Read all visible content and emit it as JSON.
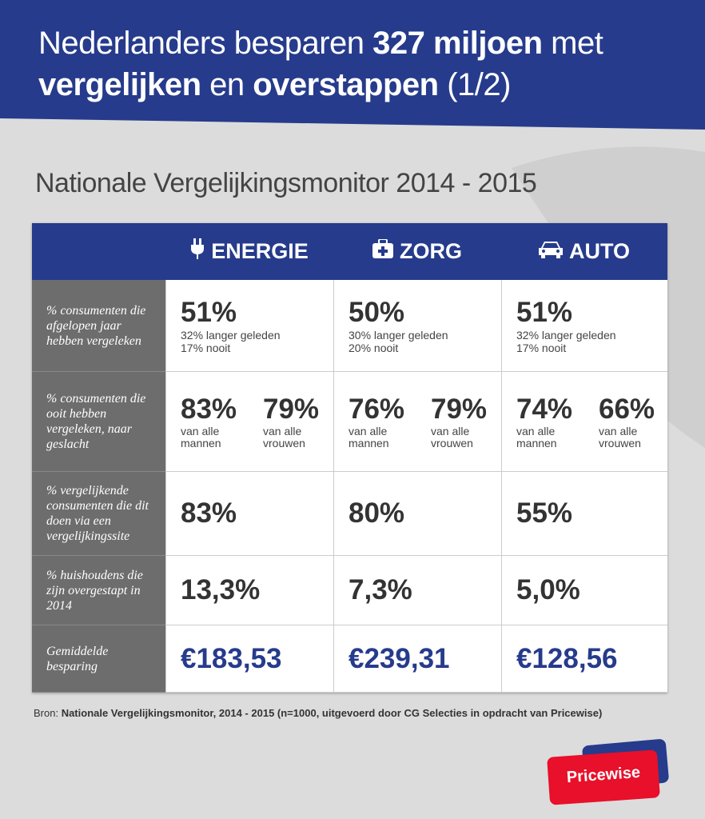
{
  "header": {
    "title_lines": [
      [
        {
          "text": "Nederlanders besparen ",
          "bold": false
        },
        {
          "text": "327 miljoen",
          "bold": true
        },
        {
          "text": " met",
          "bold": false
        }
      ],
      [
        {
          "text": "vergelijken",
          "bold": true
        },
        {
          "text": " en ",
          "bold": false
        },
        {
          "text": "overstappen",
          "bold": true
        },
        {
          "text": " (1/2)",
          "bold": false
        }
      ]
    ]
  },
  "subtitle": "Nationale Vergelijkingsmonitor 2014 - 2015",
  "table": {
    "columns": [
      "ENERGIE",
      "ZORG",
      "AUTO"
    ],
    "rows": [
      {
        "label": "% consumenten die afgelopen jaar hebben vergeleken",
        "cells": [
          {
            "main": "51%",
            "notes": [
              "32% langer geleden",
              "17% nooit"
            ]
          },
          {
            "main": "50%",
            "notes": [
              "30% langer geleden",
              "20% nooit"
            ]
          },
          {
            "main": "51%",
            "notes": [
              "32% langer geleden",
              "17% nooit"
            ]
          }
        ]
      },
      {
        "label": "% consumenten die ooit hebben vergeleken, naar geslacht",
        "cells": [
          {
            "pairs": [
              {
                "value": "83%",
                "label": "van alle mannen"
              },
              {
                "value": "79%",
                "label": "van alle vrouwen"
              }
            ]
          },
          {
            "pairs": [
              {
                "value": "76%",
                "label": "van alle mannen"
              },
              {
                "value": "79%",
                "label": "van alle vrouwen"
              }
            ]
          },
          {
            "pairs": [
              {
                "value": "74%",
                "label": "van alle mannen"
              },
              {
                "value": "66%",
                "label": "van alle vrouwen"
              }
            ]
          }
        ]
      },
      {
        "label": "% vergelijkende consumenten die dit doen via een vergelijkingssite",
        "cells": [
          {
            "main": "83%"
          },
          {
            "main": "80%"
          },
          {
            "main": "55%"
          }
        ]
      },
      {
        "label": "% huishoudens die zijn overgestapt in 2014",
        "cells": [
          {
            "main": "13,3%"
          },
          {
            "main": "7,3%"
          },
          {
            "main": "5,0%"
          }
        ]
      },
      {
        "label": "Gemiddelde besparing",
        "cells": [
          {
            "main": "€183,53"
          },
          {
            "main": "€239,31"
          },
          {
            "main": "€128,56"
          }
        ]
      }
    ]
  },
  "source": {
    "prefix": "Bron: ",
    "text": "Nationale Vergelijkingsmonitor, 2014 - 2015 (n=1000, uitgevoerd door CG Selecties in opdracht van Pricewise)"
  },
  "logo": "Pricewise"
}
